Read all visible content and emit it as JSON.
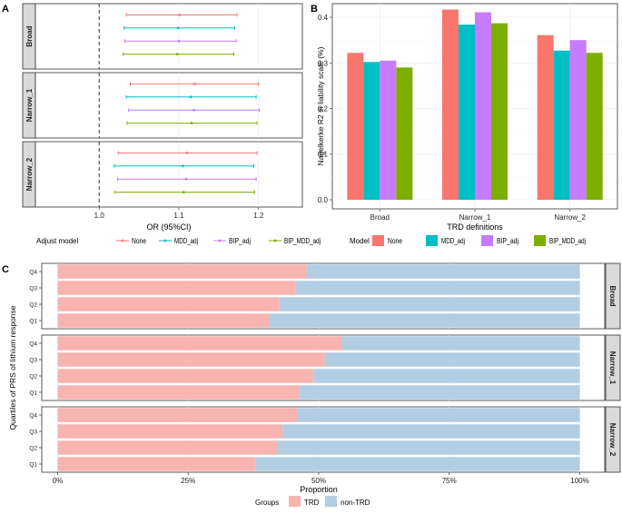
{
  "panel_labels": {
    "a": "A",
    "b": "B",
    "c": "C"
  },
  "colors": {
    "None": "#F8766D",
    "MDD_adj": "#00BFC4",
    "BIP_adj": "#C77CFF",
    "BIP_MDD_adj": "#7CAE00",
    "TRD": "#F8B4B0",
    "non-TRD": "#B3CDE3",
    "strip": "#D9D9D9"
  },
  "chart_data": [
    {
      "id": "A",
      "type": "forest",
      "xlabel": "OR (95%CI)",
      "xlim": [
        0.92,
        1.255
      ],
      "xticks": [
        1.0,
        1.1,
        1.2
      ],
      "xtick_labels": [
        "1.0",
        "1.1",
        "1.2"
      ],
      "reference_line": 1.0,
      "legend_title": "Adjust model",
      "legend_items": [
        "None",
        "MDD_adj",
        "BIP_adj",
        "BIP_MDD_adj"
      ],
      "facets": [
        {
          "name": "Broad",
          "rows": [
            {
              "model": "None",
              "or": 1.101,
              "lo": 1.034,
              "hi": 1.173
            },
            {
              "model": "MDD_adj",
              "or": 1.099,
              "lo": 1.031,
              "hi": 1.17
            },
            {
              "model": "BIP_adj",
              "or": 1.1,
              "lo": 1.032,
              "hi": 1.172
            },
            {
              "model": "BIP_MDD_adj",
              "or": 1.098,
              "lo": 1.03,
              "hi": 1.169
            }
          ]
        },
        {
          "name": "Narrow_1",
          "rows": [
            {
              "model": "None",
              "or": 1.12,
              "lo": 1.039,
              "hi": 1.2
            },
            {
              "model": "MDD_adj",
              "or": 1.115,
              "lo": 1.034,
              "hi": 1.197
            },
            {
              "model": "BIP_adj",
              "or": 1.119,
              "lo": 1.037,
              "hi": 1.201
            },
            {
              "model": "BIP_MDD_adj",
              "or": 1.116,
              "lo": 1.035,
              "hi": 1.198
            }
          ]
        },
        {
          "name": "Narrow_2",
          "rows": [
            {
              "model": "None",
              "or": 1.11,
              "lo": 1.024,
              "hi": 1.198
            },
            {
              "model": "MDD_adj",
              "or": 1.105,
              "lo": 1.019,
              "hi": 1.194
            },
            {
              "model": "BIP_adj",
              "or": 1.109,
              "lo": 1.023,
              "hi": 1.197
            },
            {
              "model": "BIP_MDD_adj",
              "or": 1.106,
              "lo": 1.02,
              "hi": 1.195
            }
          ]
        }
      ]
    },
    {
      "id": "B",
      "type": "bar",
      "xlabel": "TRD definitions",
      "ylabel": "Nagelkerke R2 in liability scale (%)",
      "categories": [
        "Broad",
        "Narrow_1",
        "Narrow_2"
      ],
      "ylim": [
        -0.02,
        0.43
      ],
      "yticks": [
        0.0,
        0.1,
        0.2,
        0.3,
        0.4
      ],
      "ytick_labels": [
        "0.0",
        "0.1",
        "0.2",
        "0.3",
        "0.4"
      ],
      "legend_title": "Model",
      "series": [
        {
          "name": "None",
          "values": [
            0.322,
            0.417,
            0.361
          ]
        },
        {
          "name": "MDD_adj",
          "values": [
            0.302,
            0.384,
            0.327
          ]
        },
        {
          "name": "BIP_adj",
          "values": [
            0.305,
            0.411,
            0.35
          ]
        },
        {
          "name": "BIP_MDD_adj",
          "values": [
            0.29,
            0.387,
            0.322
          ]
        }
      ]
    },
    {
      "id": "C",
      "type": "stacked_bar",
      "xlabel": "Proportion",
      "ylabel": "Quartiles of PRS of lithium response",
      "xticks": [
        0,
        0.25,
        0.5,
        0.75,
        1.0
      ],
      "xtick_labels": [
        "0%",
        "25%",
        "50%",
        "75%",
        "100%"
      ],
      "legend_title": "Groups",
      "legend_items": [
        "TRD",
        "non-TRD"
      ],
      "facets": [
        {
          "name": "Broad",
          "quartiles": [
            "Q4",
            "Q3",
            "Q2",
            "Q1"
          ],
          "trd": [
            0.477,
            0.456,
            0.425,
            0.405
          ]
        },
        {
          "name": "Narrow_1",
          "quartiles": [
            "Q4",
            "Q3",
            "Q2",
            "Q1"
          ],
          "trd": [
            0.544,
            0.512,
            0.491,
            0.462
          ]
        },
        {
          "name": "Narrow_2",
          "quartiles": [
            "Q4",
            "Q3",
            "Q2",
            "Q1"
          ],
          "trd": [
            0.46,
            0.431,
            0.42,
            0.378
          ]
        }
      ]
    }
  ]
}
